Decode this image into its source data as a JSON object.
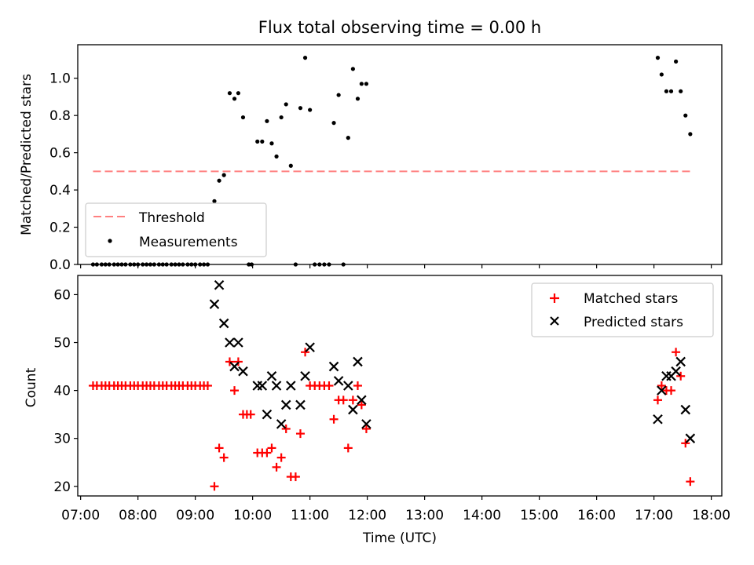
{
  "chart_data": [
    {
      "type": "scatter",
      "title": "Flux total observing time = 0.00 h",
      "xlabel": "",
      "ylabel": "Matched/Predicted stars",
      "xlim": [
        "06:57",
        "18:11"
      ],
      "ylim": [
        0,
        1.18
      ],
      "y_ticks": [
        "0.0",
        "0.2",
        "0.4",
        "0.6",
        "0.8",
        "1.0"
      ],
      "legend_position": "lower-left",
      "legend": [
        "Threshold",
        "Measurements"
      ],
      "threshold": {
        "name": "Threshold",
        "value": 0.5,
        "x_start": "07:13",
        "x_end": "17:38",
        "color": "#ff8080"
      },
      "series": [
        {
          "name": "Measurements",
          "color": "#000000",
          "points": [
            [
              "07:13",
              0
            ],
            [
              "07:17",
              0
            ],
            [
              "07:22",
              0
            ],
            [
              "07:26",
              0
            ],
            [
              "07:30",
              0
            ],
            [
              "07:35",
              0
            ],
            [
              "07:39",
              0
            ],
            [
              "07:43",
              0
            ],
            [
              "07:47",
              0
            ],
            [
              "07:52",
              0
            ],
            [
              "07:56",
              0
            ],
            [
              "08:00",
              0
            ],
            [
              "08:05",
              0
            ],
            [
              "08:09",
              0
            ],
            [
              "08:13",
              0
            ],
            [
              "08:17",
              0
            ],
            [
              "08:22",
              0
            ],
            [
              "08:26",
              0
            ],
            [
              "08:30",
              0
            ],
            [
              "08:35",
              0
            ],
            [
              "08:39",
              0
            ],
            [
              "08:43",
              0
            ],
            [
              "08:47",
              0
            ],
            [
              "08:52",
              0
            ],
            [
              "08:56",
              0
            ],
            [
              "09:00",
              0
            ],
            [
              "09:05",
              0
            ],
            [
              "09:09",
              0
            ],
            [
              "09:13",
              0
            ],
            [
              "09:20",
              0.34
            ],
            [
              "09:25",
              0.45
            ],
            [
              "09:30",
              0.48
            ],
            [
              "09:36",
              0.92
            ],
            [
              "09:41",
              0.89
            ],
            [
              "09:45",
              0.92
            ],
            [
              "09:50",
              0.79
            ],
            [
              "09:56",
              0
            ],
            [
              "09:59",
              0
            ],
            [
              "10:05",
              0.66
            ],
            [
              "10:10",
              0.66
            ],
            [
              "10:15",
              0.77
            ],
            [
              "10:20",
              0.65
            ],
            [
              "10:25",
              0.58
            ],
            [
              "10:30",
              0.79
            ],
            [
              "10:35",
              0.86
            ],
            [
              "10:40",
              0.53
            ],
            [
              "10:45",
              0
            ],
            [
              "10:50",
              0.84
            ],
            [
              "10:55",
              1.11
            ],
            [
              "11:00",
              0.83
            ],
            [
              "11:05",
              0
            ],
            [
              "11:10",
              0
            ],
            [
              "11:15",
              0
            ],
            [
              "11:20",
              0
            ],
            [
              "11:25",
              0.76
            ],
            [
              "11:30",
              0.91
            ],
            [
              "11:35",
              0
            ],
            [
              "11:40",
              0.68
            ],
            [
              "11:45",
              1.05
            ],
            [
              "11:50",
              0.89
            ],
            [
              "11:54",
              0.97
            ],
            [
              "11:59",
              0.97
            ],
            [
              "17:04",
              1.11
            ],
            [
              "17:08",
              1.02
            ],
            [
              "17:13",
              0.93
            ],
            [
              "17:18",
              0.93
            ],
            [
              "17:23",
              1.09
            ],
            [
              "17:28",
              0.93
            ],
            [
              "17:33",
              0.8
            ],
            [
              "17:38",
              0.7
            ]
          ]
        }
      ]
    },
    {
      "type": "scatter",
      "title": "",
      "xlabel": "Time (UTC)",
      "ylabel": "Count",
      "xlim": [
        "06:57",
        "18:11"
      ],
      "ylim": [
        18,
        64
      ],
      "x_ticks": [
        "07:00",
        "08:00",
        "09:00",
        "10:00",
        "11:00",
        "12:00",
        "13:00",
        "14:00",
        "15:00",
        "16:00",
        "17:00",
        "18:00"
      ],
      "y_ticks": [
        "20",
        "30",
        "40",
        "50",
        "60"
      ],
      "legend_position": "upper-right",
      "legend": [
        "Matched stars",
        "Predicted stars"
      ],
      "series": [
        {
          "name": "Matched stars",
          "marker": "+",
          "color": "#ff0000",
          "points": [
            [
              "07:13",
              41
            ],
            [
              "07:17",
              41
            ],
            [
              "07:22",
              41
            ],
            [
              "07:26",
              41
            ],
            [
              "07:30",
              41
            ],
            [
              "07:35",
              41
            ],
            [
              "07:39",
              41
            ],
            [
              "07:43",
              41
            ],
            [
              "07:47",
              41
            ],
            [
              "07:52",
              41
            ],
            [
              "07:56",
              41
            ],
            [
              "08:00",
              41
            ],
            [
              "08:05",
              41
            ],
            [
              "08:09",
              41
            ],
            [
              "08:13",
              41
            ],
            [
              "08:17",
              41
            ],
            [
              "08:22",
              41
            ],
            [
              "08:26",
              41
            ],
            [
              "08:30",
              41
            ],
            [
              "08:35",
              41
            ],
            [
              "08:39",
              41
            ],
            [
              "08:43",
              41
            ],
            [
              "08:47",
              41
            ],
            [
              "08:52",
              41
            ],
            [
              "08:56",
              41
            ],
            [
              "09:00",
              41
            ],
            [
              "09:05",
              41
            ],
            [
              "09:09",
              41
            ],
            [
              "09:13",
              41
            ],
            [
              "09:20",
              20
            ],
            [
              "09:25",
              28
            ],
            [
              "09:30",
              26
            ],
            [
              "09:36",
              46
            ],
            [
              "09:41",
              40
            ],
            [
              "09:45",
              46
            ],
            [
              "09:50",
              35
            ],
            [
              "09:54",
              35
            ],
            [
              "09:58",
              35
            ],
            [
              "10:05",
              27
            ],
            [
              "10:10",
              27
            ],
            [
              "10:15",
              27
            ],
            [
              "10:20",
              28
            ],
            [
              "10:25",
              24
            ],
            [
              "10:30",
              26
            ],
            [
              "10:35",
              32
            ],
            [
              "10:40",
              22
            ],
            [
              "10:45",
              22
            ],
            [
              "10:50",
              31
            ],
            [
              "10:55",
              48
            ],
            [
              "11:00",
              41
            ],
            [
              "11:05",
              41
            ],
            [
              "11:10",
              41
            ],
            [
              "11:15",
              41
            ],
            [
              "11:20",
              41
            ],
            [
              "11:25",
              34
            ],
            [
              "11:30",
              38
            ],
            [
              "11:35",
              38
            ],
            [
              "11:40",
              28
            ],
            [
              "11:45",
              38
            ],
            [
              "11:50",
              41
            ],
            [
              "11:54",
              37
            ],
            [
              "11:59",
              32
            ],
            [
              "17:04",
              38
            ],
            [
              "17:08",
              41
            ],
            [
              "17:13",
              40
            ],
            [
              "17:18",
              40
            ],
            [
              "17:23",
              48
            ],
            [
              "17:28",
              43
            ],
            [
              "17:33",
              29
            ],
            [
              "17:38",
              21
            ]
          ]
        },
        {
          "name": "Predicted stars",
          "marker": "x",
          "color": "#000000",
          "points": [
            [
              "09:20",
              58
            ],
            [
              "09:25",
              62
            ],
            [
              "09:30",
              54
            ],
            [
              "09:36",
              50
            ],
            [
              "09:41",
              45
            ],
            [
              "09:45",
              50
            ],
            [
              "09:50",
              44
            ],
            [
              "10:05",
              41
            ],
            [
              "10:10",
              41
            ],
            [
              "10:15",
              35
            ],
            [
              "10:20",
              43
            ],
            [
              "10:25",
              41
            ],
            [
              "10:30",
              33
            ],
            [
              "10:35",
              37
            ],
            [
              "10:40",
              41
            ],
            [
              "10:50",
              37
            ],
            [
              "10:55",
              43
            ],
            [
              "11:00",
              49
            ],
            [
              "11:25",
              45
            ],
            [
              "11:30",
              42
            ],
            [
              "11:40",
              41
            ],
            [
              "11:45",
              36
            ],
            [
              "11:50",
              46
            ],
            [
              "11:54",
              38
            ],
            [
              "11:59",
              33
            ],
            [
              "17:04",
              34
            ],
            [
              "17:08",
              40
            ],
            [
              "17:13",
              43
            ],
            [
              "17:18",
              43
            ],
            [
              "17:23",
              44
            ],
            [
              "17:28",
              46
            ],
            [
              "17:33",
              36
            ],
            [
              "17:38",
              30
            ]
          ]
        }
      ]
    }
  ]
}
